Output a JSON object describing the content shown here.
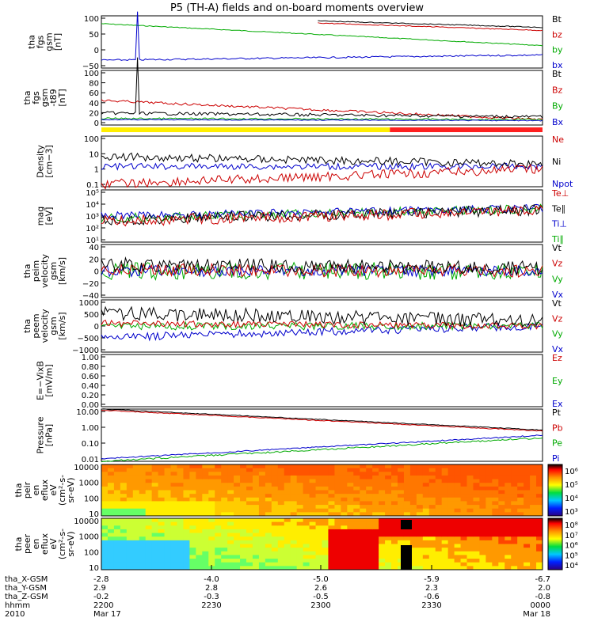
{
  "title": "P5 (TH-A) fields and on-board moments overview",
  "chart_data": {
    "type": "line",
    "title": "P5 (TH-A) fields and on-board moments overview",
    "x_axis": {
      "rows": [
        {
          "label": "tha_X-GSM",
          "values": [
            "-2.8",
            "-4.0",
            "-5.0",
            "-5.9",
            "-6.7"
          ]
        },
        {
          "label": "tha_Y-GSM",
          "values": [
            "2.9",
            "2.8",
            "2.6",
            "2.3",
            "2.0"
          ]
        },
        {
          "label": "tha_Z-GSM",
          "values": [
            "-0.2",
            "-0.3",
            "-0.5",
            "-0.6",
            "-0.8"
          ]
        },
        {
          "label": "hhmm",
          "values": [
            "2200",
            "2230",
            "2300",
            "2330",
            "0000"
          ]
        },
        {
          "label": "2010",
          "values": [
            "Mar 17",
            "",
            "",
            "",
            "Mar 18"
          ]
        }
      ]
    },
    "panels": [
      {
        "ylabel": [
          "tha",
          "fgs",
          "gsm",
          "[nT]"
        ],
        "yticks": [
          "100",
          "50",
          "0",
          "−50"
        ],
        "ylim": [
          -70,
          110
        ],
        "legend": [
          {
            "name": "Bt",
            "color": "#000000"
          },
          {
            "name": "bz",
            "color": "#cc0000"
          },
          {
            "name": "by",
            "color": "#00aa00"
          },
          {
            "name": "bx",
            "color": "#0000cc"
          }
        ]
      },
      {
        "ylabel": [
          "tha",
          "fgs",
          "gsm",
          "-t89",
          "[nT]"
        ],
        "yticks": [
          "100",
          "80",
          "60",
          "40",
          "20",
          "0"
        ],
        "ylim": [
          -10,
          100
        ],
        "legend": [
          {
            "name": "Bt",
            "color": "#000000"
          },
          {
            "name": "Bz",
            "color": "#cc0000"
          },
          {
            "name": "By",
            "color": "#00aa00"
          },
          {
            "name": "Bx",
            "color": "#0000cc"
          }
        ],
        "region_bar": [
          {
            "from": 0.0,
            "to": 0.654,
            "color": "#ffee00"
          },
          {
            "from": 0.654,
            "to": 1.0,
            "color": "#ff2020"
          }
        ]
      },
      {
        "ylabel": [
          "Density",
          "[cm−3]"
        ],
        "yticks": [
          "100",
          "10",
          "1",
          "0.1"
        ],
        "ylim": [
          0.05,
          200
        ],
        "log": true,
        "legend": [
          {
            "name": "Ne",
            "color": "#cc0000"
          },
          {
            "name": "Ni",
            "color": "#000000"
          },
          {
            "name": "Npot",
            "color": "#0000cc"
          }
        ]
      },
      {
        "ylabel": [
          "mag",
          "[eV]"
        ],
        "yticks": [
          "10⁵",
          "10⁴",
          "10³",
          "10²",
          "10¹"
        ],
        "ylim": [
          10,
          100000
        ],
        "log": true,
        "legend": [
          {
            "name": "Te⊥",
            "color": "#cc0000"
          },
          {
            "name": "Te∥",
            "color": "#000000"
          },
          {
            "name": "Ti⊥",
            "color": "#0000cc"
          },
          {
            "name": "Ti∥",
            "color": "#00aa00"
          }
        ]
      },
      {
        "ylabel": [
          "tha",
          "peim",
          "velocity",
          "gsm",
          "[km/s]"
        ],
        "yticks": [
          "40",
          "20",
          "0",
          "−20",
          "−40"
        ],
        "ylim": [
          -45,
          45
        ],
        "legend": [
          {
            "name": "Vt",
            "color": "#000000"
          },
          {
            "name": "Vz",
            "color": "#cc0000"
          },
          {
            "name": "Vy",
            "color": "#00aa00"
          },
          {
            "name": "Vx",
            "color": "#0000cc"
          }
        ]
      },
      {
        "ylabel": [
          "tha",
          "peem",
          "velocity",
          "gsm",
          "[km/s]"
        ],
        "yticks": [
          "1000",
          "500",
          "0",
          "−500",
          "−1000"
        ],
        "ylim": [
          -1050,
          1050
        ],
        "legend": [
          {
            "name": "Vt",
            "color": "#000000"
          },
          {
            "name": "Vz",
            "color": "#cc0000"
          },
          {
            "name": "Vy",
            "color": "#00aa00"
          },
          {
            "name": "Vx",
            "color": "#0000cc"
          }
        ]
      },
      {
        "ylabel": [
          "E=−VixB",
          "[mV/m]"
        ],
        "yticks": [
          "1.00",
          "0.80",
          "0.60",
          "0.40",
          "0.20",
          "0.00"
        ],
        "ylim": [
          0,
          1
        ],
        "legend": [
          {
            "name": "Ez",
            "color": "#cc0000"
          },
          {
            "name": "Ey",
            "color": "#00aa00"
          },
          {
            "name": "Ex",
            "color": "#0000cc"
          }
        ]
      },
      {
        "ylabel": [
          "Pressure",
          "[nPa]"
        ],
        "yticks": [
          "10.00",
          "1.00",
          "0.10",
          "0.01"
        ],
        "ylim": [
          0.007,
          20
        ],
        "log": true,
        "legend": [
          {
            "name": "Pt",
            "color": "#000000"
          },
          {
            "name": "Pb",
            "color": "#cc0000"
          },
          {
            "name": "Pe",
            "color": "#00aa00"
          },
          {
            "name": "Pi",
            "color": "#0000cc"
          }
        ]
      },
      {
        "type": "heatmap",
        "ylabel": [
          "tha",
          "peir",
          "en",
          "eflux",
          "eV",
          "(cm²-s-",
          "sr-eV)"
        ],
        "yticks": [
          "10000",
          "1000",
          "100",
          "10"
        ],
        "colorbar_ticks": [
          "10⁶",
          "10⁵",
          "10⁴",
          "10³"
        ]
      },
      {
        "type": "heatmap",
        "ylabel": [
          "tha",
          "peer",
          "en",
          "eflux",
          "eV",
          "(cm²-s-",
          "sr-eV)"
        ],
        "yticks": [
          "10000",
          "1000",
          "100",
          "10"
        ],
        "colorbar_ticks": [
          "10⁸",
          "10⁷",
          "10⁶",
          "10⁵",
          "10⁴"
        ]
      }
    ]
  }
}
